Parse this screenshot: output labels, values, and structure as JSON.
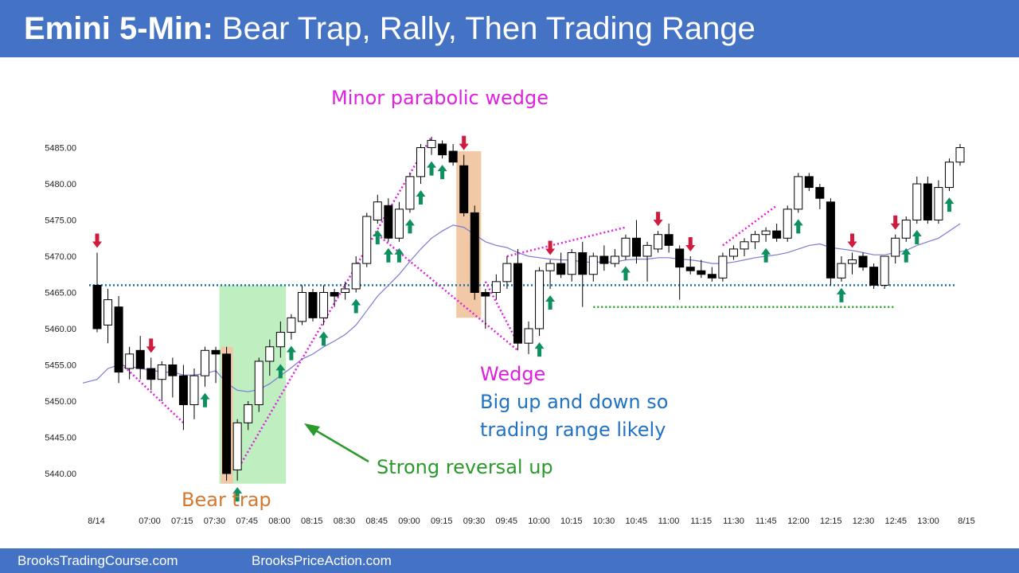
{
  "header": {
    "title_bold": "Emini 5-Min:",
    "title_rest": " Bear Trap, Rally, Then Trading Range",
    "background": "#4472c4"
  },
  "footer": {
    "link_left": "BrooksTradingCourse.com",
    "link_right": "BrooksPriceAction.com"
  },
  "colors": {
    "ema": "#7b7bd6",
    "dotted_blue": "#1f6f9f",
    "dotted_green": "#22a022",
    "wedge_lines": "#e020e0",
    "up_arrow": "#0e8f5e",
    "down_arrow": "#cf1b3e",
    "bear_trap_box": "#f2c9a7",
    "reversal_box": "#bfeec0",
    "bear_trap_text": "#d4782d",
    "magenta_text": "#e020e0",
    "blue_text": "#1f72c4",
    "green_text": "#2a9a2a"
  },
  "annotations": {
    "minor_parabolic_wedge": "Minor parabolic wedge",
    "wedge": "Wedge",
    "big_up_down_1": "Big up and down so",
    "big_up_down_2": "trading range likely",
    "strong_reversal": "Strong reversal up",
    "bear_trap": "Bear trap"
  },
  "chart_data": {
    "type": "candlestick",
    "instrument": "Emini",
    "timeframe": "5-Min",
    "ylim": [
      5438,
      5488
    ],
    "y_ticks": [
      "5440.00",
      "5445.00",
      "5450.00",
      "5455.00",
      "5460.00",
      "5465.00",
      "5470.00",
      "5475.00",
      "5480.00",
      "5485.00"
    ],
    "x_labels": [
      "8/14",
      "07:00",
      "07:15",
      "07:30",
      "07:45",
      "08:00",
      "08:15",
      "08:30",
      "08:45",
      "09:00",
      "09:15",
      "09:30",
      "09:45",
      "10:00",
      "10:15",
      "10:30",
      "10:45",
      "11:00",
      "11:15",
      "11:30",
      "11:45",
      "12:00",
      "12:15",
      "12:30",
      "12:45",
      "13:00",
      "8/15"
    ],
    "candles": [
      {
        "o": 5466.0,
        "h": 5470.5,
        "l": 5459.5,
        "c": 5460.0
      },
      {
        "o": 5460.5,
        "h": 5465.5,
        "l": 5458.0,
        "c": 5464.0
      },
      {
        "o": 5463.0,
        "h": 5464.5,
        "l": 5452.5,
        "c": 5454.0
      },
      {
        "o": 5454.5,
        "h": 5457.5,
        "l": 5453.0,
        "c": 5456.5
      },
      {
        "o": 5457.0,
        "h": 5459.0,
        "l": 5453.0,
        "c": 5454.5
      },
      {
        "o": 5454.5,
        "h": 5456.0,
        "l": 5451.5,
        "c": 5453.0
      },
      {
        "o": 5453.0,
        "h": 5455.5,
        "l": 5450.0,
        "c": 5455.0
      },
      {
        "o": 5455.0,
        "h": 5456.0,
        "l": 5450.5,
        "c": 5453.5
      },
      {
        "o": 5453.5,
        "h": 5455.0,
        "l": 5446.0,
        "c": 5449.5
      },
      {
        "o": 5449.5,
        "h": 5454.5,
        "l": 5447.5,
        "c": 5453.5
      },
      {
        "o": 5453.5,
        "h": 5457.5,
        "l": 5452.0,
        "c": 5457.0
      },
      {
        "o": 5457.0,
        "h": 5457.5,
        "l": 5452.5,
        "c": 5456.5
      },
      {
        "o": 5456.5,
        "h": 5457.5,
        "l": 5439.0,
        "c": 5440.0
      },
      {
        "o": 5440.5,
        "h": 5447.5,
        "l": 5439.0,
        "c": 5447.0
      },
      {
        "o": 5447.0,
        "h": 5450.0,
        "l": 5446.0,
        "c": 5449.5
      },
      {
        "o": 5449.5,
        "h": 5456.0,
        "l": 5448.5,
        "c": 5455.5
      },
      {
        "o": 5455.5,
        "h": 5458.5,
        "l": 5453.5,
        "c": 5457.5
      },
      {
        "o": 5457.5,
        "h": 5461.0,
        "l": 5456.0,
        "c": 5459.5
      },
      {
        "o": 5459.5,
        "h": 5462.0,
        "l": 5458.5,
        "c": 5461.5
      },
      {
        "o": 5461.0,
        "h": 5466.0,
        "l": 5460.5,
        "c": 5465.0
      },
      {
        "o": 5465.0,
        "h": 5465.5,
        "l": 5461.0,
        "c": 5461.5
      },
      {
        "o": 5461.5,
        "h": 5466.0,
        "l": 5460.5,
        "c": 5465.0
      },
      {
        "o": 5465.0,
        "h": 5465.5,
        "l": 5463.0,
        "c": 5464.5
      },
      {
        "o": 5465.0,
        "h": 5466.5,
        "l": 5464.0,
        "c": 5465.5
      },
      {
        "o": 5465.5,
        "h": 5470.0,
        "l": 5465.0,
        "c": 5469.0
      },
      {
        "o": 5469.0,
        "h": 5476.0,
        "l": 5468.5,
        "c": 5475.5
      },
      {
        "o": 5475.0,
        "h": 5478.5,
        "l": 5474.5,
        "c": 5477.5
      },
      {
        "o": 5477.0,
        "h": 5478.0,
        "l": 5472.0,
        "c": 5472.5
      },
      {
        "o": 5472.5,
        "h": 5477.5,
        "l": 5472.0,
        "c": 5476.5
      },
      {
        "o": 5476.5,
        "h": 5481.5,
        "l": 5476.0,
        "c": 5481.0
      },
      {
        "o": 5481.0,
        "h": 5485.5,
        "l": 5480.0,
        "c": 5485.0
      },
      {
        "o": 5485.0,
        "h": 5486.5,
        "l": 5484.0,
        "c": 5486.0
      },
      {
        "o": 5485.5,
        "h": 5486.0,
        "l": 5483.5,
        "c": 5484.0
      },
      {
        "o": 5484.5,
        "h": 5485.5,
        "l": 5482.5,
        "c": 5483.0
      },
      {
        "o": 5482.5,
        "h": 5484.0,
        "l": 5475.5,
        "c": 5476.0
      },
      {
        "o": 5476.0,
        "h": 5477.0,
        "l": 5464.0,
        "c": 5465.0
      },
      {
        "o": 5465.0,
        "h": 5465.5,
        "l": 5460.0,
        "c": 5464.5
      },
      {
        "o": 5465.0,
        "h": 5467.5,
        "l": 5464.0,
        "c": 5466.5
      },
      {
        "o": 5466.5,
        "h": 5470.0,
        "l": 5465.5,
        "c": 5469.0
      },
      {
        "o": 5469.0,
        "h": 5471.0,
        "l": 5457.0,
        "c": 5458.0
      },
      {
        "o": 5458.0,
        "h": 5461.0,
        "l": 5456.5,
        "c": 5460.0
      },
      {
        "o": 5460.0,
        "h": 5468.5,
        "l": 5459.0,
        "c": 5468.0
      },
      {
        "o": 5468.0,
        "h": 5469.5,
        "l": 5465.5,
        "c": 5469.0
      },
      {
        "o": 5469.0,
        "h": 5470.5,
        "l": 5467.0,
        "c": 5467.5
      },
      {
        "o": 5467.5,
        "h": 5471.0,
        "l": 5466.5,
        "c": 5470.5
      },
      {
        "o": 5470.5,
        "h": 5472.0,
        "l": 5463.0,
        "c": 5467.5
      },
      {
        "o": 5467.5,
        "h": 5470.5,
        "l": 5466.5,
        "c": 5470.0
      },
      {
        "o": 5470.0,
        "h": 5471.5,
        "l": 5468.0,
        "c": 5469.0
      },
      {
        "o": 5469.0,
        "h": 5471.0,
        "l": 5468.5,
        "c": 5470.0
      },
      {
        "o": 5470.0,
        "h": 5473.0,
        "l": 5469.5,
        "c": 5472.5
      },
      {
        "o": 5472.5,
        "h": 5475.0,
        "l": 5469.0,
        "c": 5470.0
      },
      {
        "o": 5470.0,
        "h": 5472.0,
        "l": 5466.5,
        "c": 5471.5
      },
      {
        "o": 5471.0,
        "h": 5473.5,
        "l": 5470.5,
        "c": 5473.0
      },
      {
        "o": 5473.0,
        "h": 5474.5,
        "l": 5470.5,
        "c": 5471.5
      },
      {
        "o": 5471.0,
        "h": 5471.5,
        "l": 5464.0,
        "c": 5468.5
      },
      {
        "o": 5468.5,
        "h": 5470.0,
        "l": 5467.5,
        "c": 5468.0
      },
      {
        "o": 5468.0,
        "h": 5469.5,
        "l": 5467.0,
        "c": 5467.5
      },
      {
        "o": 5467.5,
        "h": 5468.5,
        "l": 5466.5,
        "c": 5467.0
      },
      {
        "o": 5467.0,
        "h": 5470.5,
        "l": 5466.5,
        "c": 5470.0
      },
      {
        "o": 5470.0,
        "h": 5471.5,
        "l": 5469.5,
        "c": 5471.0
      },
      {
        "o": 5471.0,
        "h": 5472.5,
        "l": 5470.0,
        "c": 5472.0
      },
      {
        "o": 5472.0,
        "h": 5473.5,
        "l": 5471.0,
        "c": 5473.0
      },
      {
        "o": 5473.0,
        "h": 5474.0,
        "l": 5472.0,
        "c": 5473.5
      },
      {
        "o": 5473.5,
        "h": 5474.5,
        "l": 5472.0,
        "c": 5472.5
      },
      {
        "o": 5472.5,
        "h": 5477.0,
        "l": 5472.0,
        "c": 5476.5
      },
      {
        "o": 5476.5,
        "h": 5481.5,
        "l": 5476.0,
        "c": 5481.0
      },
      {
        "o": 5481.0,
        "h": 5481.5,
        "l": 5479.0,
        "c": 5479.5
      },
      {
        "o": 5479.5,
        "h": 5480.0,
        "l": 5476.5,
        "c": 5478.0
      },
      {
        "o": 5477.5,
        "h": 5478.0,
        "l": 5466.0,
        "c": 5467.0
      },
      {
        "o": 5467.0,
        "h": 5470.0,
        "l": 5466.5,
        "c": 5469.0
      },
      {
        "o": 5469.0,
        "h": 5470.5,
        "l": 5467.5,
        "c": 5469.5
      },
      {
        "o": 5470.0,
        "h": 5470.5,
        "l": 5468.0,
        "c": 5468.5
      },
      {
        "o": 5468.5,
        "h": 5469.0,
        "l": 5465.5,
        "c": 5466.0
      },
      {
        "o": 5466.0,
        "h": 5470.0,
        "l": 5465.5,
        "c": 5470.0
      },
      {
        "o": 5470.0,
        "h": 5473.0,
        "l": 5469.0,
        "c": 5472.5
      },
      {
        "o": 5472.5,
        "h": 5475.5,
        "l": 5472.0,
        "c": 5475.0
      },
      {
        "o": 5475.0,
        "h": 5481.0,
        "l": 5474.5,
        "c": 5480.0
      },
      {
        "o": 5480.0,
        "h": 5481.0,
        "l": 5474.5,
        "c": 5475.0
      },
      {
        "o": 5475.0,
        "h": 5480.5,
        "l": 5474.5,
        "c": 5479.5
      },
      {
        "o": 5479.5,
        "h": 5483.5,
        "l": 5479.0,
        "c": 5483.0
      },
      {
        "o": 5483.0,
        "h": 5485.5,
        "l": 5482.5,
        "c": 5485.0
      }
    ],
    "ema": [
      5453.0,
      5454.5,
      5455.0,
      5454.8,
      5454.5,
      5454.3,
      5454.0,
      5454.0,
      5453.6,
      5453.6,
      5453.8,
      5454.2,
      5452.5,
      5451.5,
      5451.3,
      5451.6,
      5452.4,
      5453.5,
      5454.6,
      5455.8,
      5456.5,
      5457.5,
      5458.3,
      5459.2,
      5460.5,
      5462.5,
      5464.5,
      5466.0,
      5467.5,
      5469.3,
      5471.0,
      5472.5,
      5473.5,
      5474.3,
      5474.0,
      5473.0,
      5472.0,
      5471.5,
      5471.2,
      5470.5,
      5470.0,
      5469.8,
      5469.6,
      5469.5,
      5469.5,
      5469.2,
      5469.2,
      5469.2,
      5469.2,
      5469.5,
      5469.6,
      5469.6,
      5469.8,
      5469.8,
      5469.6,
      5469.5,
      5469.3,
      5469.0,
      5469.0,
      5469.2,
      5469.5,
      5469.8,
      5470.0,
      5470.2,
      5470.5,
      5471.0,
      5471.5,
      5471.7,
      5471.2,
      5471.0,
      5470.8,
      5470.5,
      5470.2,
      5470.2,
      5470.5,
      5470.8,
      5471.5,
      5472.0,
      5472.5,
      5473.5,
      5474.5
    ],
    "reference_lines": [
      {
        "y": 5466.0,
        "style": "dotted",
        "color": "blue"
      },
      {
        "y": 5463.0,
        "style": "dotted",
        "color": "green",
        "from_bar": 46,
        "to_bar": 74
      }
    ],
    "up_arrows_bars": [
      10,
      13,
      17,
      18,
      21,
      24,
      26,
      27,
      28,
      29,
      30,
      31,
      32,
      41,
      42,
      49,
      62,
      65,
      69,
      75,
      76,
      79
    ],
    "down_arrows_bars": [
      0,
      5,
      34,
      42,
      52,
      55,
      70,
      74
    ]
  }
}
